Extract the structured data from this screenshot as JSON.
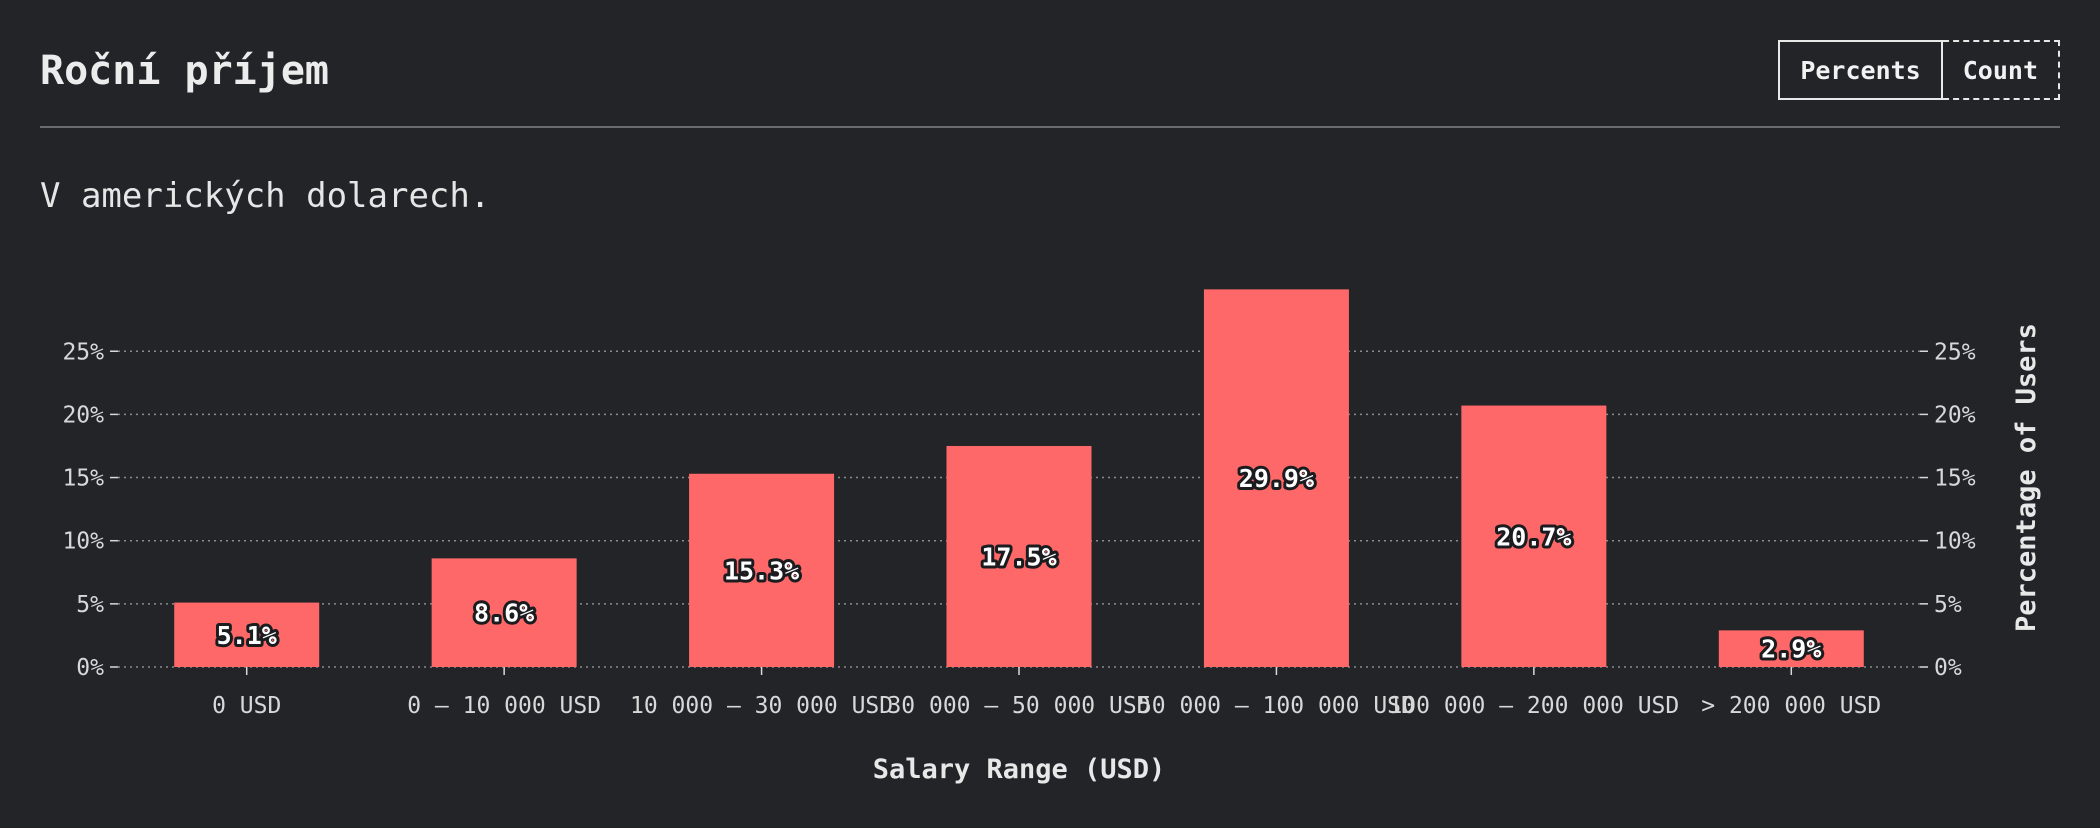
{
  "header": {
    "title": "Roční příjem",
    "toggle": {
      "percents_label": "Percents",
      "count_label": "Count",
      "active": "Percents"
    }
  },
  "subtitle": "V amerických dolarech.",
  "colors": {
    "background": "#232428",
    "bar": "#ff6868",
    "text": "#e8e8e8",
    "grid": "#8a8b8f"
  },
  "chart_data": {
    "type": "bar",
    "categories": [
      "0 USD",
      "0 – 10 000 USD",
      "10 000 – 30 000 USD",
      "30 000 – 50 000 USD",
      "50 000 – 100 000 USD",
      "100 000 – 200 000 USD",
      "> 200 000 USD"
    ],
    "values": [
      5.1,
      8.6,
      15.3,
      17.5,
      29.9,
      20.7,
      2.9
    ],
    "value_labels": [
      "5.1%",
      "8.6%",
      "15.3%",
      "17.5%",
      "29.9%",
      "20.7%",
      "2.9%"
    ],
    "xlabel": "Salary Range (USD)",
    "ylabel": "Percentage of Users",
    "ylim": [
      0,
      30
    ],
    "y_ticks": [
      0,
      5,
      10,
      15,
      20,
      25
    ],
    "y_tick_labels": [
      "0%",
      "5%",
      "10%",
      "15%",
      "20%",
      "25%"
    ],
    "grid": true,
    "grid_style": "dotted"
  }
}
